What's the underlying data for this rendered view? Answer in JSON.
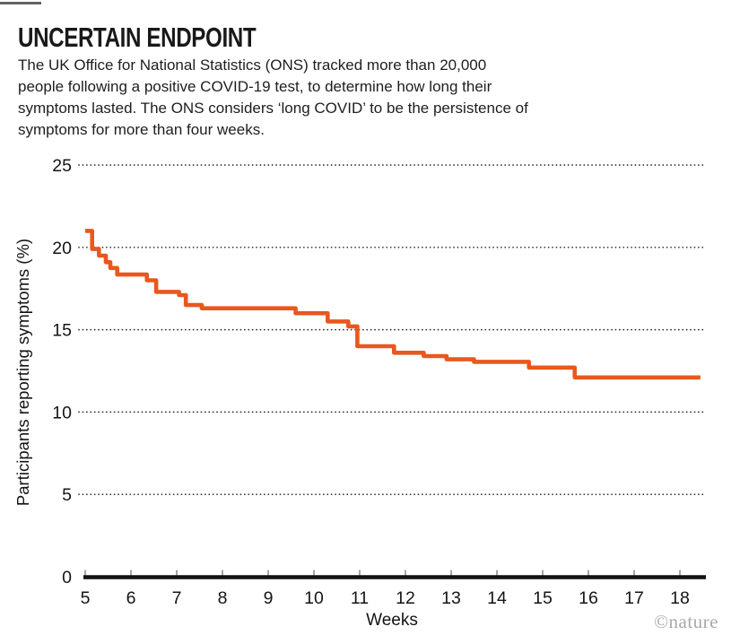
{
  "header": {
    "title": "UNCERTAIN ENDPOINT",
    "description_lines": [
      "The UK Office for National Statistics (ONS) tracked more than 20,000",
      "people following a positive COVID-19 test, to determine how long their",
      "symptoms lasted. The ONS considers ‘long COVID’ to be the persistence of",
      "symptoms for more than four weeks."
    ]
  },
  "chart_data": {
    "type": "line",
    "subtype": "step-after-survival-curve",
    "title": "UNCERTAIN ENDPOINT",
    "xlabel": "Weeks",
    "ylabel": "Participants reporting symptoms (%)",
    "xlim": [
      5,
      18.6
    ],
    "ylim": [
      0,
      25
    ],
    "x_ticks": [
      5,
      6,
      7,
      8,
      9,
      10,
      11,
      12,
      13,
      14,
      15,
      16,
      17,
      18
    ],
    "y_ticks": [
      0,
      5,
      10,
      15,
      20,
      25
    ],
    "grid": "horizontal dotted lines at each y tick (5-25), solid black baseline at 0",
    "legend": "none",
    "line_color": "#e8581e",
    "series": [
      {
        "name": "Participants reporting symptoms (%)",
        "step_points": [
          [
            5.0,
            21.0
          ],
          [
            5.15,
            19.9
          ],
          [
            5.3,
            19.5
          ],
          [
            5.45,
            19.1
          ],
          [
            5.55,
            18.75
          ],
          [
            5.7,
            18.35
          ],
          [
            6.35,
            18.0
          ],
          [
            6.55,
            17.3
          ],
          [
            7.05,
            17.1
          ],
          [
            7.2,
            16.5
          ],
          [
            7.55,
            16.3
          ],
          [
            9.6,
            16.0
          ],
          [
            10.3,
            15.5
          ],
          [
            10.75,
            15.2
          ],
          [
            10.95,
            14.0
          ],
          [
            11.75,
            13.6
          ],
          [
            12.4,
            13.4
          ],
          [
            12.9,
            13.2
          ],
          [
            13.5,
            13.05
          ],
          [
            14.7,
            12.7
          ],
          [
            15.7,
            12.1
          ]
        ],
        "end_week": 18.45
      }
    ]
  },
  "watermark": {
    "text": "©nature",
    "color": "#a8a8a8"
  }
}
